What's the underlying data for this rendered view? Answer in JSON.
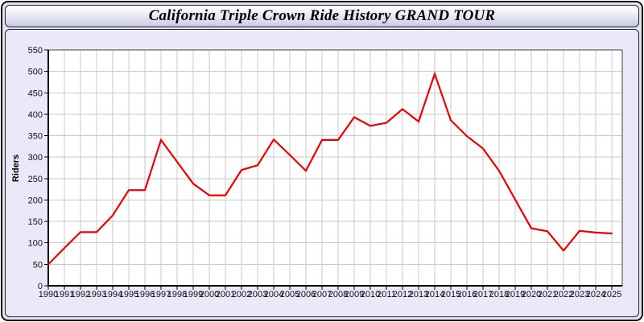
{
  "window": {
    "title": "California Triple Crown Ride History GRAND TOUR"
  },
  "chart_data": {
    "type": "line",
    "title": "California Triple Crown Ride History GRAND TOUR",
    "xlabel": "",
    "ylabel": "Riders",
    "x": [
      1990,
      1991,
      1992,
      1993,
      1994,
      1995,
      1996,
      1997,
      1998,
      1999,
      2000,
      2001,
      2002,
      2003,
      2004,
      2005,
      2006,
      2007,
      2008,
      2009,
      2010,
      2011,
      2012,
      2013,
      2014,
      2015,
      2016,
      2017,
      2018,
      2019,
      2020,
      2021,
      2022,
      2023,
      2024,
      2025
    ],
    "series": [
      {
        "name": "Riders",
        "color": "#ee0000",
        "values": [
          50,
          88,
          125,
          125,
          164,
          223,
          223,
          340,
          289,
          238,
          211,
          211,
          270,
          281,
          341,
          305,
          268,
          340,
          340,
          393,
          373,
          380,
          412,
          383,
          494,
          386,
          349,
          320,
          268,
          201,
          134,
          127,
          82,
          128,
          124,
          122
        ]
      }
    ],
    "ylim": [
      0,
      550
    ],
    "yticks": [
      0,
      50,
      100,
      150,
      200,
      250,
      300,
      350,
      400,
      450,
      500,
      550
    ],
    "grid": true,
    "legend": "none",
    "plot_bg": "#ffffff",
    "grid_color": "#c9c9c9",
    "axis_color": "#000000",
    "tick_label_color": "#111111"
  }
}
